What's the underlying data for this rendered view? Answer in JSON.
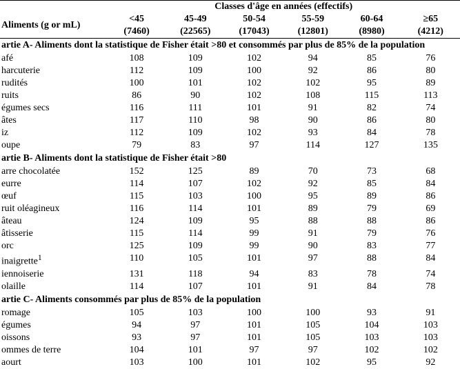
{
  "header": {
    "group_title": "Classes d'âge en années (effectifs)",
    "row_label": "Aliments (g or mL)",
    "columns": [
      {
        "label": "<45",
        "n": "(7460)"
      },
      {
        "label": "45-49",
        "n": "(22565)"
      },
      {
        "label": "50-54",
        "n": "(17043)"
      },
      {
        "label": "55-59",
        "n": "(12801)"
      },
      {
        "label": "60-64",
        "n": "(8980)"
      },
      {
        "label": "≥65",
        "n": "(4212)"
      }
    ]
  },
  "sections": [
    {
      "title": "artie A- Aliments dont la statistique de Fisher était >80 et consommés par plus de 85% de la population",
      "rows": [
        {
          "name": "afé",
          "v": [
            "108",
            "109",
            "102",
            "94",
            "85",
            "76"
          ]
        },
        {
          "name": "harcuterie",
          "v": [
            "112",
            "109",
            "100",
            "92",
            "86",
            "80"
          ]
        },
        {
          "name": "rudités",
          "v": [
            "100",
            "101",
            "102",
            "102",
            "95",
            "89"
          ]
        },
        {
          "name": "ruits",
          "v": [
            "86",
            "90",
            "102",
            "108",
            "115",
            "113"
          ]
        },
        {
          "name": "égumes secs",
          "v": [
            "116",
            "111",
            "101",
            "91",
            "82",
            "74"
          ]
        },
        {
          "name": "âtes",
          "v": [
            "117",
            "110",
            "98",
            "90",
            "86",
            "80"
          ]
        },
        {
          "name": "iz",
          "v": [
            "112",
            "109",
            "102",
            "93",
            "84",
            "78"
          ]
        },
        {
          "name": "oupe",
          "v": [
            "79",
            "83",
            "97",
            "114",
            "127",
            "135"
          ]
        }
      ]
    },
    {
      "title": "artie B- Aliments dont la statistique de Fisher était >80",
      "rows": [
        {
          "name": "arre chocolatée",
          "v": [
            "152",
            "125",
            "89",
            "70",
            "73",
            "68"
          ]
        },
        {
          "name": "eurre",
          "v": [
            "114",
            "107",
            "102",
            "92",
            "85",
            "84"
          ]
        },
        {
          "name": "œuf",
          "v": [
            "115",
            "103",
            "100",
            "95",
            "89",
            "86"
          ]
        },
        {
          "name": "ruit oléagineux",
          "v": [
            "116",
            "114",
            "101",
            "89",
            "79",
            "69"
          ]
        },
        {
          "name": "âteau",
          "v": [
            "124",
            "109",
            "95",
            "88",
            "88",
            "86"
          ]
        },
        {
          "name": "âtisserie",
          "v": [
            "115",
            "114",
            "99",
            "91",
            "79",
            "76"
          ]
        },
        {
          "name": "orc",
          "v": [
            "125",
            "109",
            "99",
            "90",
            "83",
            "77"
          ]
        },
        {
          "name1": "inaigrette",
          "sup": "1",
          "v": [
            "110",
            "105",
            "101",
            "97",
            "88",
            "84"
          ]
        },
        {
          "name": "iennoiserie",
          "v": [
            "131",
            "118",
            "94",
            "83",
            "78",
            "74"
          ]
        },
        {
          "name": "olaille",
          "v": [
            "114",
            "107",
            "101",
            "91",
            "84",
            "78"
          ]
        }
      ]
    },
    {
      "title": "artie C- Aliments consommés par plus de 85% de la population",
      "rows": [
        {
          "name": "romage",
          "v": [
            "105",
            "103",
            "100",
            "100",
            "93",
            "91"
          ]
        },
        {
          "name": "égumes",
          "v": [
            "94",
            "97",
            "101",
            "105",
            "104",
            "103"
          ]
        },
        {
          "name": "oissons",
          "v": [
            "93",
            "97",
            "101",
            "105",
            "103",
            "103"
          ]
        },
        {
          "name": "ommes de terre",
          "v": [
            "104",
            "101",
            "97",
            "97",
            "102",
            "102"
          ]
        },
        {
          "name": "aourt",
          "v": [
            "103",
            "100",
            "101",
            "102",
            "95",
            "92"
          ]
        }
      ]
    }
  ]
}
